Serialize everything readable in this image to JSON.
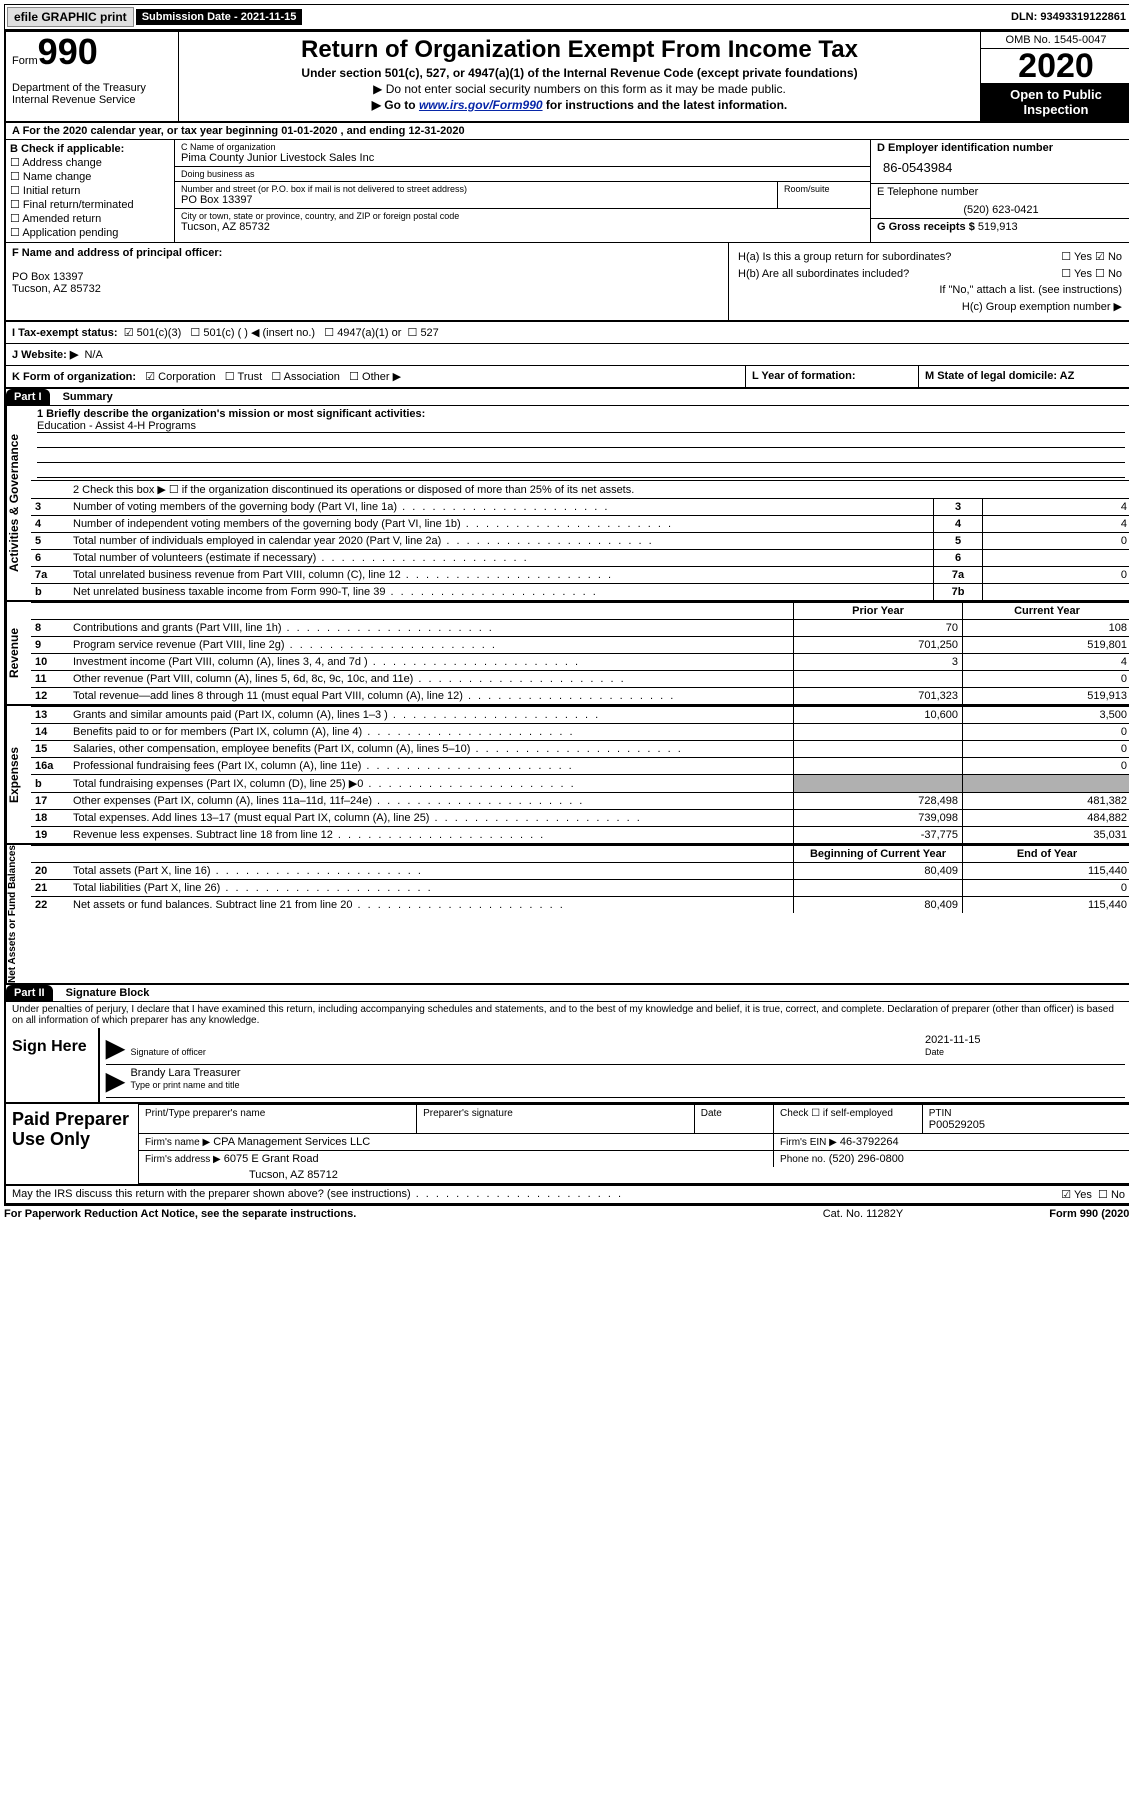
{
  "topbar": {
    "efile": "efile GRAPHIC print",
    "submission_label": "Submission Date",
    "submission_date": "2021-11-15",
    "dln_label": "DLN:",
    "dln": "93493319122861"
  },
  "header": {
    "form_word": "Form",
    "form_number": "990",
    "dept": "Department of the Treasury\nInternal Revenue Service",
    "title": "Return of Organization Exempt From Income Tax",
    "sub": "Under section 501(c), 527, or 4947(a)(1) of the Internal Revenue Code (except private foundations)",
    "sub2": "Do not enter social security numbers on this form as it may be made public.",
    "sub3_pre": "Go to ",
    "sub3_link": "www.irs.gov/Form990",
    "sub3_post": " for instructions and the latest information.",
    "omb": "OMB No. 1545-0047",
    "year": "2020",
    "inspection": "Open to Public Inspection"
  },
  "rowA": "A For the 2020 calendar year, or tax year beginning 01-01-2020   , and ending 12-31-2020",
  "blockB": {
    "label": "B Check if applicable:",
    "opts": [
      "Address change",
      "Name change",
      "Initial return",
      "Final return/terminated",
      "Amended return",
      "Application pending"
    ]
  },
  "blockC": {
    "name_label": "C Name of organization",
    "name": "Pima County Junior Livestock Sales Inc",
    "dba_label": "Doing business as",
    "dba": "",
    "addr_label": "Number and street (or P.O. box if mail is not delivered to street address)",
    "room_label": "Room/suite",
    "addr": "PO Box 13397",
    "city_label": "City or town, state or province, country, and ZIP or foreign postal code",
    "city": "Tucson, AZ  85732"
  },
  "blockD": {
    "label": "D Employer identification number",
    "ein": "86-0543984",
    "tel_label": "E Telephone number",
    "tel": "(520) 623-0421",
    "gross_label": "G Gross receipts $",
    "gross": "519,913"
  },
  "rowF": {
    "label": "F Name and address of principal officer:",
    "line1": "PO Box 13397",
    "line2": "Tucson, AZ  85732"
  },
  "rowH": {
    "a_label": "H(a)  Is this a group return for subordinates?",
    "a_yes": "Yes",
    "a_no": "No",
    "b_label": "H(b)  Are all subordinates included?",
    "b_note": "If \"No,\" attach a list. (see instructions)",
    "c_label": "H(c)  Group exemption number ▶"
  },
  "rowI": {
    "label": "I  Tax-exempt status:",
    "o501c3": "501(c)(3)",
    "o501c": "501(c) (  ) ◀ (insert no.)",
    "o4947": "4947(a)(1) or",
    "o527": "527"
  },
  "rowJ": {
    "label": "J  Website: ▶",
    "value": "N/A"
  },
  "rowK": {
    "label": "K Form of organization:",
    "corp": "Corporation",
    "trust": "Trust",
    "assoc": "Association",
    "other": "Other ▶",
    "L": "L Year of formation:",
    "M": "M State of legal domicile: AZ"
  },
  "partI": {
    "label": "Part I",
    "title": "Summary"
  },
  "governance": {
    "vlabel": "Activities & Governance",
    "q1_label": "1  Briefly describe the organization's mission or most significant activities:",
    "q1_val": "Education - Assist 4-H Programs",
    "q2": "2   Check this box ▶ ☐  if the organization discontinued its operations or disposed of more than 25% of its net assets.",
    "rows": [
      {
        "n": "3",
        "text": "Number of voting members of the governing body (Part VI, line 1a)",
        "box": "3",
        "val": "4"
      },
      {
        "n": "4",
        "text": "Number of independent voting members of the governing body (Part VI, line 1b)",
        "box": "4",
        "val": "4"
      },
      {
        "n": "5",
        "text": "Total number of individuals employed in calendar year 2020 (Part V, line 2a)",
        "box": "5",
        "val": "0"
      },
      {
        "n": "6",
        "text": "Total number of volunteers (estimate if necessary)",
        "box": "6",
        "val": ""
      },
      {
        "n": "7a",
        "text": "Total unrelated business revenue from Part VIII, column (C), line 12",
        "box": "7a",
        "val": "0"
      },
      {
        "n": "b",
        "text": "Net unrelated business taxable income from Form 990-T, line 39",
        "box": "7b",
        "val": ""
      }
    ]
  },
  "revenue": {
    "vlabel": "Revenue",
    "prior": "Prior Year",
    "current": "Current Year",
    "rows": [
      {
        "n": "8",
        "text": "Contributions and grants (Part VIII, line 1h)",
        "py": "70",
        "cy": "108"
      },
      {
        "n": "9",
        "text": "Program service revenue (Part VIII, line 2g)",
        "py": "701,250",
        "cy": "519,801"
      },
      {
        "n": "10",
        "text": "Investment income (Part VIII, column (A), lines 3, 4, and 7d )",
        "py": "3",
        "cy": "4"
      },
      {
        "n": "11",
        "text": "Other revenue (Part VIII, column (A), lines 5, 6d, 8c, 9c, 10c, and 11e)",
        "py": "",
        "cy": "0"
      },
      {
        "n": "12",
        "text": "Total revenue—add lines 8 through 11 (must equal Part VIII, column (A), line 12)",
        "py": "701,323",
        "cy": "519,913"
      }
    ]
  },
  "expenses": {
    "vlabel": "Expenses",
    "rows": [
      {
        "n": "13",
        "text": "Grants and similar amounts paid (Part IX, column (A), lines 1–3 )",
        "py": "10,600",
        "cy": "3,500"
      },
      {
        "n": "14",
        "text": "Benefits paid to or for members (Part IX, column (A), line 4)",
        "py": "",
        "cy": "0"
      },
      {
        "n": "15",
        "text": "Salaries, other compensation, employee benefits (Part IX, column (A), lines 5–10)",
        "py": "",
        "cy": "0"
      },
      {
        "n": "16a",
        "text": "Professional fundraising fees (Part IX, column (A), line 11e)",
        "py": "",
        "cy": "0"
      },
      {
        "n": "b",
        "text": "Total fundraising expenses (Part IX, column (D), line 25) ▶0",
        "py": "grey",
        "cy": "grey"
      },
      {
        "n": "17",
        "text": "Other expenses (Part IX, column (A), lines 11a–11d, 11f–24e)",
        "py": "728,498",
        "cy": "481,382"
      },
      {
        "n": "18",
        "text": "Total expenses. Add lines 13–17 (must equal Part IX, column (A), line 25)",
        "py": "739,098",
        "cy": "484,882"
      },
      {
        "n": "19",
        "text": "Revenue less expenses. Subtract line 18 from line 12",
        "py": "-37,775",
        "cy": "35,031"
      }
    ]
  },
  "netassets": {
    "vlabel": "Net Assets or Fund Balances",
    "begin": "Beginning of Current Year",
    "end": "End of Year",
    "rows": [
      {
        "n": "20",
        "text": "Total assets (Part X, line 16)",
        "py": "80,409",
        "cy": "115,440"
      },
      {
        "n": "21",
        "text": "Total liabilities (Part X, line 26)",
        "py": "",
        "cy": "0"
      },
      {
        "n": "22",
        "text": "Net assets or fund balances. Subtract line 21 from line 20",
        "py": "80,409",
        "cy": "115,440"
      }
    ]
  },
  "partII": {
    "label": "Part II",
    "title": "Signature Block"
  },
  "penalties": "Under penalties of perjury, I declare that I have examined this return, including accompanying schedules and statements, and to the best of my knowledge and belief, it is true, correct, and complete. Declaration of preparer (other than officer) is based on all information of which preparer has any knowledge.",
  "sign": {
    "heading": "Sign Here",
    "sig_label": "Signature of officer",
    "date": "2021-11-15",
    "date_label": "Date",
    "name": "Brandy Lara  Treasurer",
    "name_label": "Type or print name and title"
  },
  "preparer": {
    "heading": "Paid Preparer Use Only",
    "name_label": "Print/Type preparer's name",
    "sig_label": "Preparer's signature",
    "date_label": "Date",
    "check_label": "Check ☐  if self-employed",
    "ptin_label": "PTIN",
    "ptin": "P00529205",
    "firm_name_label": "Firm's name    ▶",
    "firm_name": "CPA Management Services LLC",
    "firm_ein_label": "Firm's EIN ▶",
    "firm_ein": "46-3792264",
    "firm_addr_label": "Firm's address ▶",
    "firm_addr": "6075 E Grant Road",
    "firm_city": "Tucson, AZ  85712",
    "phone_label": "Phone no.",
    "phone": "(520) 296-0800"
  },
  "discuss": {
    "text": "May the IRS discuss this return with the preparer shown above? (see instructions)",
    "yes": "Yes",
    "no": "No"
  },
  "footer": {
    "paperwork": "For Paperwork Reduction Act Notice, see the separate instructions.",
    "cat": "Cat. No. 11282Y",
    "form": "Form 990 (2020)"
  }
}
